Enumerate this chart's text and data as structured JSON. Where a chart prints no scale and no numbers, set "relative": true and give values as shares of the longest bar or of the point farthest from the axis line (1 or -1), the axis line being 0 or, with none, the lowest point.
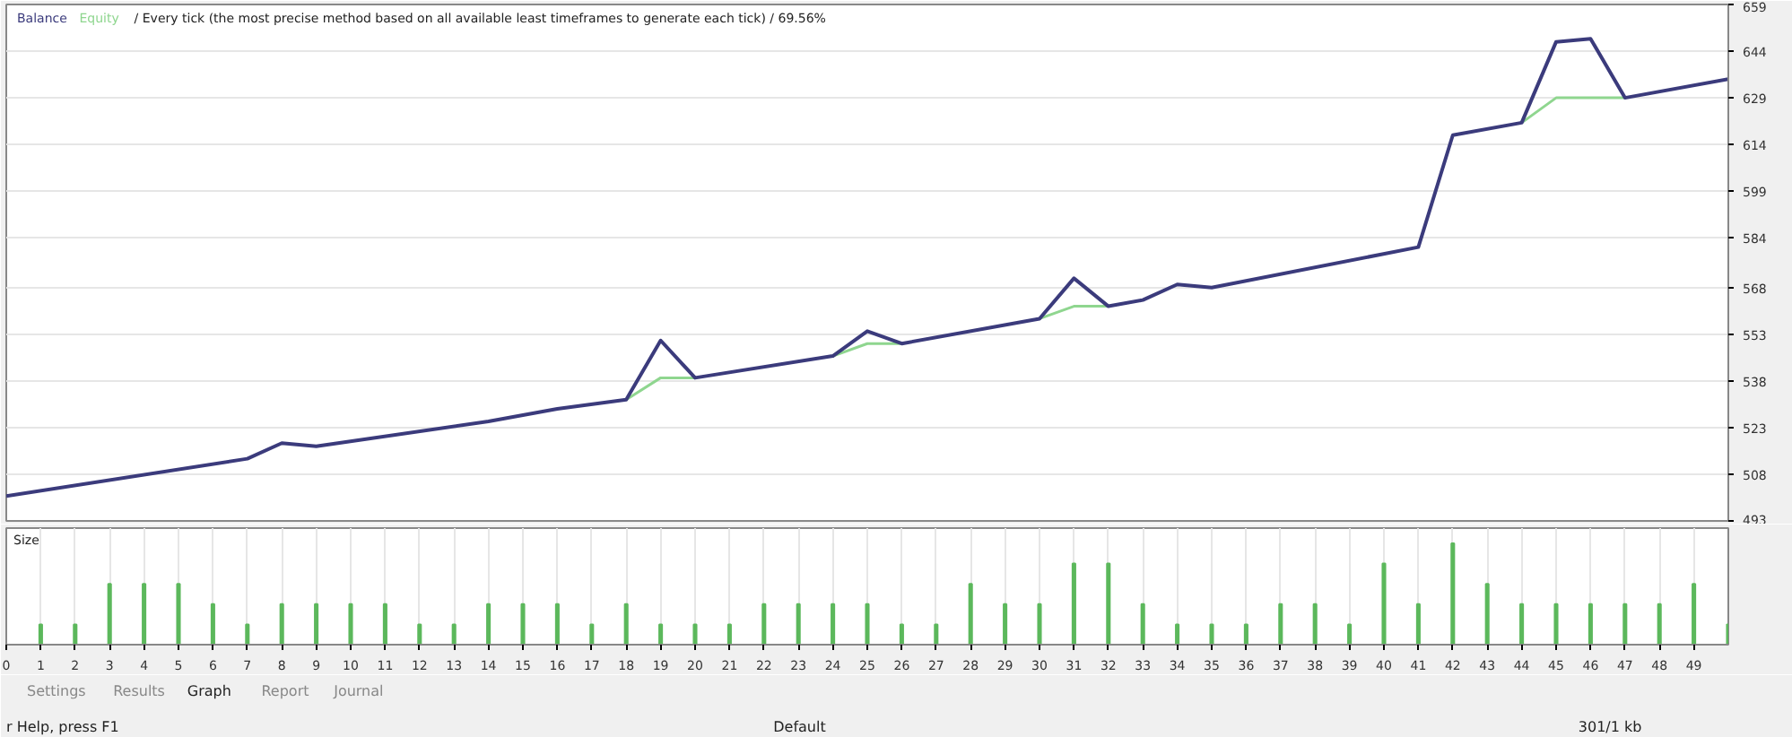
{
  "chart_data": [
    {
      "type": "line",
      "title": "/ Every tick (the most precise method based on all available least timeframes to generate each tick) / 69.56%",
      "series": [
        {
          "name": "Balance",
          "color": "#3b3b7c",
          "x": [
            0,
            7,
            8,
            9,
            14,
            16,
            18,
            19,
            20,
            24,
            25,
            26,
            30,
            31,
            32,
            33,
            34,
            35,
            41,
            42,
            44,
            45,
            46,
            47,
            50
          ],
          "values": [
            501,
            513,
            518,
            517,
            525,
            529,
            532,
            551,
            539,
            546,
            554,
            550,
            558,
            571,
            562,
            564,
            569,
            568,
            581,
            617,
            621,
            647,
            648,
            629,
            635
          ]
        },
        {
          "name": "Equity",
          "color": "#8fd68f",
          "x": [
            18,
            19,
            20,
            21,
            24,
            25,
            26,
            27,
            30,
            31,
            32,
            33,
            44,
            45,
            46,
            47
          ],
          "values": [
            532,
            539,
            539,
            null,
            546,
            550,
            550,
            null,
            558,
            562,
            562,
            null,
            621,
            629,
            629,
            629
          ]
        }
      ],
      "xlim": [
        0,
        50
      ],
      "ylim": [
        493,
        659
      ],
      "yticks": [
        493,
        508,
        523,
        538,
        553,
        568,
        584,
        599,
        614,
        629,
        644,
        659
      ],
      "grid": true,
      "legend": "top left",
      "tick_labels": "y"
    },
    {
      "type": "bar",
      "title": "Size",
      "relative": true,
      "color": "#5cb85c",
      "x": [
        1,
        2,
        3,
        4,
        5,
        6,
        7,
        8,
        9,
        10,
        11,
        12,
        13,
        14,
        15,
        16,
        17,
        18,
        19,
        20,
        21,
        22,
        23,
        24,
        25,
        26,
        27,
        28,
        29,
        30,
        31,
        32,
        33,
        34,
        35,
        36,
        37,
        38,
        39,
        40,
        41,
        42,
        43,
        44,
        45,
        46,
        47,
        48,
        49,
        50
      ],
      "values": [
        0.2,
        0.2,
        0.6,
        0.6,
        0.6,
        0.4,
        0.2,
        0.4,
        0.4,
        0.4,
        0.4,
        0.2,
        0.2,
        0.4,
        0.4,
        0.4,
        0.2,
        0.4,
        0.2,
        0.2,
        0.2,
        0.4,
        0.4,
        0.4,
        0.4,
        0.2,
        0.2,
        0.6,
        0.4,
        0.4,
        0.8,
        0.8,
        0.4,
        0.2,
        0.2,
        0.2,
        0.4,
        0.4,
        0.2,
        0.8,
        0.4,
        1.0,
        0.6,
        0.4,
        0.4,
        0.4,
        0.4,
        0.4,
        0.6,
        0.2
      ],
      "xlim": [
        0,
        50
      ],
      "xticks": [
        0,
        1,
        2,
        3,
        4,
        5,
        6,
        7,
        8,
        9,
        10,
        11,
        12,
        13,
        14,
        15,
        16,
        17,
        18,
        19,
        20,
        21,
        22,
        23,
        24,
        25,
        26,
        27,
        28,
        29,
        30,
        31,
        32,
        33,
        34,
        35,
        36,
        37,
        38,
        39,
        40,
        41,
        42,
        43,
        44,
        45,
        46,
        47,
        48,
        49
      ],
      "grid": "x",
      "tick_labels": "x",
      "annotations": [
        "Settings",
        "Results",
        "Graph",
        "Report",
        "Journal",
        "r Help, press F1",
        "Default",
        "301/1 kb"
      ]
    }
  ]
}
